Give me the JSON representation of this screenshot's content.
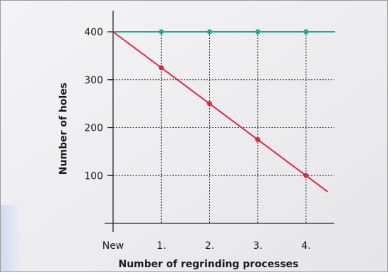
{
  "chart_data": {
    "type": "line",
    "xlabel": "Number of regrinding processes",
    "ylabel": "Number of holes",
    "categories": [
      "New",
      "1.",
      "2.",
      "3.",
      "4."
    ],
    "x": [
      0,
      1,
      2,
      3,
      4
    ],
    "xlim": [
      0,
      4.5
    ],
    "ylim": [
      0,
      450
    ],
    "yticks": [
      100,
      200,
      300,
      400
    ],
    "grid": "dotted",
    "series": [
      {
        "color": "#1fa896",
        "points": [
          [
            0,
            400
          ],
          [
            1,
            400
          ],
          [
            2,
            400
          ],
          [
            3,
            400
          ],
          [
            4,
            400
          ]
        ],
        "line_end_x": 4.6
      },
      {
        "color": "#e0283c",
        "points": [
          [
            0,
            400
          ],
          [
            1,
            325
          ],
          [
            2,
            250
          ],
          [
            3,
            175
          ],
          [
            4,
            100
          ]
        ],
        "line_end_x": 4.45,
        "line_end_y": 66
      }
    ]
  },
  "colors": {
    "background_gradient_start": "#f4f4f6",
    "background_gradient_end": "#e6e6ea",
    "frame_border": "#9a9a9a",
    "axis": "#222222",
    "grid": "#333333",
    "accent_blue": "#d8e3f1"
  }
}
